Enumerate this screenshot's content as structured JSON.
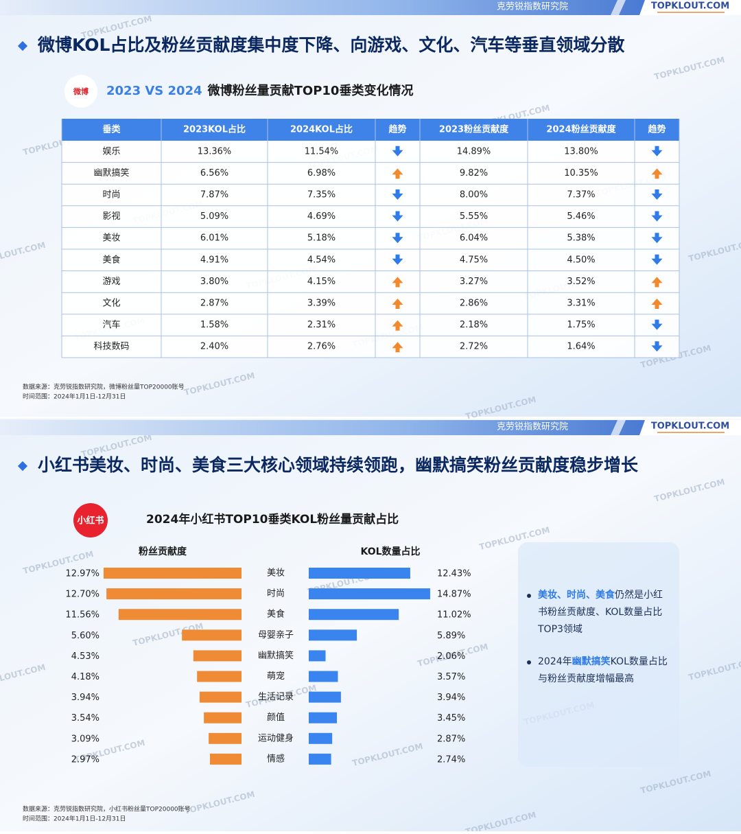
{
  "slide1": {
    "header": {
      "org": "克劳锐指数研究院",
      "brand": "TOPKLOUT.COM"
    },
    "title": "微博KOL占比及粉丝贡献度集中度下降、向游戏、文化、汽车等垂直领域分散",
    "logo": "微博",
    "subtitle": {
      "highlight": "2023 VS 2024",
      "text": "微博粉丝量贡献TOP10垂类变化情况"
    },
    "table": {
      "columns": [
        "垂类",
        "2023KOL占比",
        "2024KOL占比",
        "趋势",
        "2023粉丝贡献度",
        "2024粉丝贡献度",
        "趋势"
      ],
      "rows": [
        {
          "cells": [
            "娱乐",
            "13.36%",
            "11.54%",
            "14.89%",
            "13.80%"
          ],
          "trend_kol": "down",
          "trend_fans": "down"
        },
        {
          "cells": [
            "幽默搞笑",
            "6.56%",
            "6.98%",
            "9.82%",
            "10.35%"
          ],
          "trend_kol": "up",
          "trend_fans": "up"
        },
        {
          "cells": [
            "时尚",
            "7.87%",
            "7.35%",
            "8.00%",
            "7.37%"
          ],
          "trend_kol": "down",
          "trend_fans": "down"
        },
        {
          "cells": [
            "影视",
            "5.09%",
            "4.69%",
            "5.55%",
            "5.46%"
          ],
          "trend_kol": "down",
          "trend_fans": "down"
        },
        {
          "cells": [
            "美妆",
            "6.01%",
            "5.18%",
            "6.04%",
            "5.38%"
          ],
          "trend_kol": "down",
          "trend_fans": "down"
        },
        {
          "cells": [
            "美食",
            "4.91%",
            "4.54%",
            "4.75%",
            "4.50%"
          ],
          "trend_kol": "down",
          "trend_fans": "down"
        },
        {
          "cells": [
            "游戏",
            "3.80%",
            "4.15%",
            "3.27%",
            "3.52%"
          ],
          "trend_kol": "up",
          "trend_fans": "up"
        },
        {
          "cells": [
            "文化",
            "2.87%",
            "3.39%",
            "2.86%",
            "3.31%"
          ],
          "trend_kol": "up",
          "trend_fans": "up"
        },
        {
          "cells": [
            "汽车",
            "1.58%",
            "2.31%",
            "2.18%",
            "1.75%"
          ],
          "trend_kol": "up",
          "trend_fans": "down"
        },
        {
          "cells": [
            "科技数码",
            "2.40%",
            "2.76%",
            "2.72%",
            "1.64%"
          ],
          "trend_kol": "up",
          "trend_fans": "down"
        }
      ]
    },
    "source": [
      "数据来源：克劳锐指数研究院，微博粉丝量TOP20000账号",
      "时间范围：2024年1月1日-12月31日"
    ]
  },
  "slide2": {
    "header": {
      "org": "克劳锐指数研究院",
      "brand": "TOPKLOUT.COM"
    },
    "title": "小红书美妆、时尚、美食三大核心领域持续领跑，幽默搞笑粉丝贡献度稳步增长",
    "logo": "小红书",
    "chart_data": {
      "type": "bar",
      "title": "2024年小红书TOP10垂类KOL粉丝量贡献占比",
      "categories": [
        "美妆",
        "时尚",
        "美食",
        "母婴亲子",
        "幽默搞笑",
        "萌宠",
        "生活记录",
        "颜值",
        "运动健身",
        "情感"
      ],
      "series": [
        {
          "name": "粉丝贡献度",
          "color": "#ef8a35",
          "values": [
            12.97,
            12.7,
            11.56,
            5.6,
            4.53,
            4.18,
            3.94,
            3.54,
            3.09,
            2.97
          ],
          "value_labels": [
            "12.97%",
            "12.70%",
            "11.56%",
            "5.60%",
            "4.53%",
            "4.18%",
            "3.94%",
            "3.54%",
            "3.09%",
            "2.97%"
          ]
        },
        {
          "name": "KOL数量占比",
          "color": "#3a84ef",
          "values": [
            12.43,
            14.87,
            11.02,
            5.89,
            2.06,
            3.57,
            3.94,
            3.45,
            2.87,
            2.74
          ],
          "value_labels": [
            "12.43%",
            "14.87%",
            "11.02%",
            "5.89%",
            "2.06%",
            "3.57%",
            "3.94%",
            "3.45%",
            "2.87%",
            "2.74%"
          ]
        }
      ]
    },
    "bullets": [
      [
        {
          "text": "美妆、时尚、美食",
          "color": "#2f7be8"
        },
        {
          "text": "仍然是小红书粉丝贡献度、KOL数量占比TOP3领域"
        }
      ],
      [
        {
          "text": "2024年"
        },
        {
          "text": "幽默搞笑",
          "color": "#2f7be8"
        },
        {
          "text": "KOL数量占比与粉丝贡献度增幅最高"
        }
      ]
    ],
    "source": [
      "数据来源：克劳锐指数研究院，小红书粉丝量TOP20000账号",
      "时间范围：2024年1月1日-12月31日"
    ]
  }
}
